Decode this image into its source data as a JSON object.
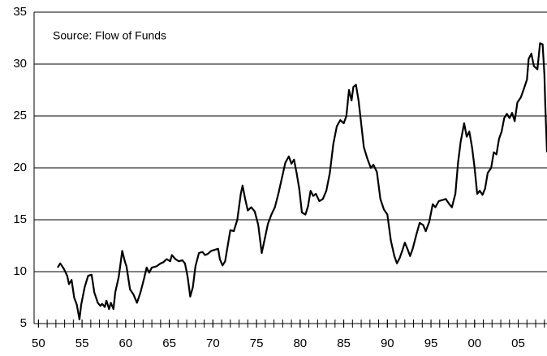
{
  "chart_data": {
    "type": "line",
    "annotation": "Source: Flow of Funds",
    "x": [
      1952.2,
      1952.5,
      1952.9,
      1953.3,
      1953.5,
      1953.8,
      1954.1,
      1954.4,
      1954.7,
      1954.9,
      1955.3,
      1955.7,
      1956.1,
      1956.4,
      1956.8,
      1957.1,
      1957.3,
      1957.6,
      1957.8,
      1958.1,
      1958.3,
      1958.6,
      1958.8,
      1959.2,
      1959.6,
      1959.9,
      1960.1,
      1960.5,
      1960.9,
      1961.3,
      1961.7,
      1962.1,
      1962.4,
      1962.7,
      1963.0,
      1963.5,
      1964.0,
      1964.3,
      1964.7,
      1965.1,
      1965.3,
      1965.7,
      1966.1,
      1966.5,
      1966.8,
      1967.1,
      1967.4,
      1967.7,
      1968.0,
      1968.4,
      1968.8,
      1969.1,
      1969.4,
      1969.8,
      1970.2,
      1970.6,
      1970.8,
      1971.1,
      1971.4,
      1971.7,
      1972.0,
      1972.4,
      1972.8,
      1973.2,
      1973.4,
      1973.7,
      1974.0,
      1974.4,
      1974.8,
      1975.2,
      1975.6,
      1975.9,
      1976.3,
      1976.7,
      1977.1,
      1977.5,
      1977.9,
      1978.3,
      1978.7,
      1979.0,
      1979.3,
      1979.6,
      1979.9,
      1980.2,
      1980.6,
      1980.9,
      1981.2,
      1981.5,
      1981.8,
      1982.2,
      1982.6,
      1983.0,
      1983.4,
      1983.8,
      1984.2,
      1984.6,
      1985.0,
      1985.3,
      1985.6,
      1985.9,
      1986.1,
      1986.4,
      1986.7,
      1986.9,
      1987.3,
      1987.7,
      1988.1,
      1988.4,
      1988.8,
      1989.2,
      1989.6,
      1990.0,
      1990.4,
      1990.8,
      1991.1,
      1991.4,
      1991.7,
      1992.0,
      1992.3,
      1992.6,
      1992.9,
      1993.3,
      1993.7,
      1994.1,
      1994.4,
      1994.8,
      1995.2,
      1995.5,
      1995.9,
      1996.3,
      1996.7,
      1997.1,
      1997.4,
      1997.8,
      1998.1,
      1998.4,
      1998.8,
      1999.1,
      1999.4,
      1999.7,
      2000.0,
      2000.3,
      2000.6,
      2000.9,
      2001.2,
      2001.5,
      2001.9,
      2002.2,
      2002.5,
      2002.8,
      2003.1,
      2003.4,
      2003.7,
      2004.0,
      2004.3,
      2004.6,
      2004.9,
      2005.3,
      2005.6,
      2006.0,
      2006.2,
      2006.5,
      2006.8,
      2007.2,
      2007.5,
      2007.8,
      2008.0,
      2008.1,
      2008.3
    ],
    "series": [
      {
        "color": "#000000",
        "values": [
          10.4,
          10.8,
          10.3,
          9.6,
          8.8,
          9.2,
          7.5,
          6.8,
          5.4,
          6.8,
          8.5,
          9.6,
          9.7,
          8.0,
          7.0,
          6.7,
          6.9,
          6.6,
          7.2,
          6.4,
          7.0,
          6.4,
          8.0,
          9.5,
          12.0,
          11.0,
          10.5,
          8.3,
          7.8,
          7.0,
          8.0,
          9.3,
          10.4,
          9.9,
          10.4,
          10.5,
          10.8,
          10.9,
          11.2,
          11.0,
          11.6,
          11.2,
          11.0,
          11.1,
          10.8,
          9.5,
          7.6,
          8.5,
          10.5,
          11.8,
          11.9,
          11.6,
          11.7,
          12.0,
          12.1,
          12.2,
          11.2,
          10.6,
          11.0,
          12.5,
          14.0,
          13.9,
          15.0,
          17.5,
          18.3,
          17.0,
          15.9,
          16.2,
          15.8,
          14.5,
          11.8,
          13.0,
          14.6,
          15.5,
          16.2,
          17.5,
          19.0,
          20.5,
          21.1,
          20.4,
          20.8,
          19.5,
          18.0,
          15.7,
          15.5,
          16.3,
          17.8,
          17.3,
          17.5,
          16.8,
          17.0,
          17.8,
          19.5,
          22.3,
          24.0,
          24.6,
          24.3,
          25.0,
          27.5,
          26.5,
          27.8,
          28.0,
          26.5,
          25.0,
          22.0,
          20.9,
          20.0,
          20.3,
          19.6,
          17.0,
          16.0,
          15.5,
          13.0,
          11.5,
          10.8,
          11.3,
          12.0,
          12.8,
          12.2,
          11.5,
          12.2,
          13.5,
          14.7,
          14.5,
          13.9,
          14.8,
          16.5,
          16.2,
          16.8,
          16.9,
          17.0,
          16.5,
          16.2,
          17.5,
          20.5,
          22.5,
          24.3,
          23.0,
          23.5,
          22.0,
          20.0,
          17.5,
          17.8,
          17.4,
          18.0,
          19.5,
          20.0,
          21.5,
          21.3,
          22.8,
          23.5,
          24.8,
          25.2,
          24.8,
          25.3,
          24.5,
          26.3,
          26.8,
          27.5,
          28.5,
          30.5,
          31.0,
          29.8,
          29.5,
          32.0,
          31.9,
          29.0,
          26.0,
          21.5
        ]
      }
    ],
    "xlim": [
      1949.5,
      2008.3
    ],
    "xticks": [
      {
        "value": 1950,
        "label": "50"
      },
      {
        "value": 1955,
        "label": "55"
      },
      {
        "value": 1960,
        "label": "60"
      },
      {
        "value": 1965,
        "label": "65"
      },
      {
        "value": 1970,
        "label": "70"
      },
      {
        "value": 1975,
        "label": "75"
      },
      {
        "value": 1980,
        "label": "80"
      },
      {
        "value": 1985,
        "label": "85"
      },
      {
        "value": 1990,
        "label": "90"
      },
      {
        "value": 1995,
        "label": "95"
      },
      {
        "value": 2000,
        "label": "00"
      },
      {
        "value": 2005,
        "label": "05"
      }
    ],
    "xminorticks": [
      1950,
      1951,
      1952,
      1953,
      1954,
      1955,
      1956,
      1957,
      1958,
      1959,
      1960,
      1961,
      1962,
      1963,
      1964,
      1965,
      1966,
      1967,
      1968,
      1969,
      1970,
      1971,
      1972,
      1973,
      1974,
      1975,
      1976,
      1977,
      1978,
      1979,
      1980,
      1981,
      1982,
      1983,
      1984,
      1985,
      1986,
      1987,
      1988,
      1989,
      1990,
      1991,
      1992,
      1993,
      1994,
      1995,
      1996,
      1997,
      1998,
      1999,
      2000,
      2001,
      2002,
      2003,
      2004,
      2005,
      2006,
      2007,
      2008
    ],
    "ylim": [
      5,
      35
    ],
    "yticks": [
      5,
      10,
      15,
      20,
      25,
      30,
      35
    ],
    "grid": true
  }
}
